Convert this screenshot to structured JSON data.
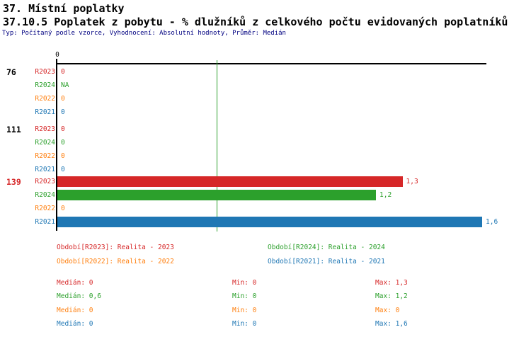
{
  "page": {
    "title_line1": "37. Místní poplatky",
    "title_line2": "37.10.5 Poplatek z pobytu - % dlužníků z celkového počtu evidovaných poplatníků",
    "type_info": "Typ: Počítaný podle vzorce, Vyhodnocení: Absolutní hodnoty, Průměr: Medián"
  },
  "colors": {
    "title": "#000000",
    "type_info": "#000080",
    "axis": "#000000",
    "median_line": "#2ca02c",
    "highlight_group": "#d62728",
    "series": {
      "R2023": "#d62728",
      "R2024": "#2ca02c",
      "R2022": "#ff7f0e",
      "R2021": "#1f77b4"
    }
  },
  "chart_data": {
    "type": "bar",
    "orientation": "horizontal",
    "x_axis": {
      "tick_labels": [
        "0"
      ],
      "min": 0,
      "max": 1.6,
      "grid": false
    },
    "median_marker_value": 0.6,
    "series_order": [
      "R2023",
      "R2024",
      "R2022",
      "R2021"
    ],
    "groups": [
      {
        "label": "76",
        "highlighted": false,
        "values": [
          {
            "series": "R2023",
            "value": 0,
            "display": "0"
          },
          {
            "series": "R2024",
            "value": null,
            "display": "NA"
          },
          {
            "series": "R2022",
            "value": 0,
            "display": "0"
          },
          {
            "series": "R2021",
            "value": 0,
            "display": "0"
          }
        ]
      },
      {
        "label": "111",
        "highlighted": false,
        "values": [
          {
            "series": "R2023",
            "value": 0,
            "display": "0"
          },
          {
            "series": "R2024",
            "value": 0,
            "display": "0"
          },
          {
            "series": "R2022",
            "value": 0,
            "display": "0"
          },
          {
            "series": "R2021",
            "value": 0,
            "display": "0"
          }
        ]
      },
      {
        "label": "139",
        "highlighted": true,
        "values": [
          {
            "series": "R2023",
            "value": 1.3,
            "display": "1,3"
          },
          {
            "series": "R2024",
            "value": 1.2,
            "display": "1,2"
          },
          {
            "series": "R2022",
            "value": 0,
            "display": "0"
          },
          {
            "series": "R2021",
            "value": 1.6,
            "display": "1,6"
          }
        ]
      }
    ]
  },
  "legend": {
    "items": [
      {
        "series": "R2023",
        "text": "Období[R2023]: Realita - 2023"
      },
      {
        "series": "R2024",
        "text": "Období[R2024]: Realita - 2024"
      },
      {
        "series": "R2022",
        "text": "Období[R2022]: Realita - 2022"
      },
      {
        "series": "R2021",
        "text": "Období[R2021]: Realita - 2021"
      }
    ]
  },
  "stats": {
    "rows": [
      {
        "series": "R2023",
        "median": "Medián: 0",
        "min": "Min: 0",
        "max": "Max: 1,3"
      },
      {
        "series": "R2024",
        "median": "Medián: 0,6",
        "min": "Min: 0",
        "max": "Max: 1,2"
      },
      {
        "series": "R2022",
        "median": "Medián: 0",
        "min": "Min: 0",
        "max": "Max: 0"
      },
      {
        "series": "R2021",
        "median": "Medián: 0",
        "min": "Min: 0",
        "max": "Max: 1,6"
      }
    ]
  }
}
